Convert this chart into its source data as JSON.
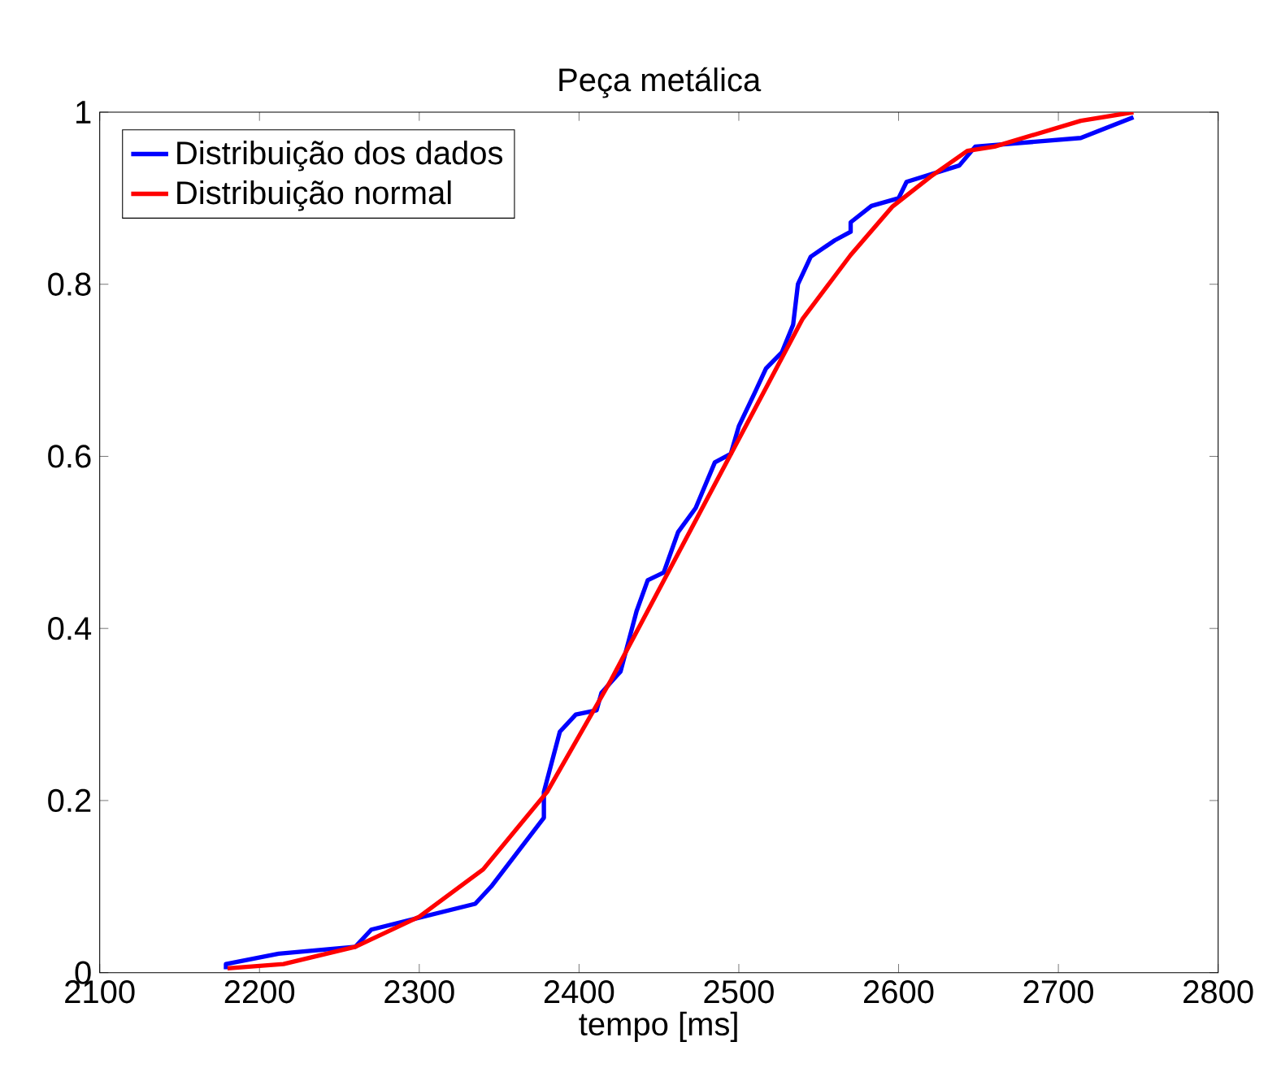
{
  "chart_data": {
    "type": "line",
    "title": "Peça metálica",
    "xlabel": "tempo [ms]",
    "xlim": [
      2100,
      2800
    ],
    "xticks": [
      2100,
      2200,
      2300,
      2400,
      2500,
      2600,
      2700,
      2800
    ],
    "ylim": [
      0,
      1
    ],
    "yticks": [
      0,
      {
        "value": 0.2,
        "label": "0.2"
      },
      {
        "value": 0.4,
        "label": "0.4"
      },
      {
        "value": 0.6,
        "label": "0.6"
      },
      {
        "value": 0.8,
        "label": "0.8"
      },
      1
    ],
    "legend": "top left",
    "grid": false,
    "marker": "none",
    "line_style": "solid",
    "series": [
      {
        "name": "Distribuição dos dados",
        "color": "#0000ff",
        "x": [
          2179,
          2179,
          2212,
          2260,
          2270,
          2335,
          2345,
          2378,
          2378,
          2388,
          2398,
          2411,
          2414,
          2426,
          2436,
          2443,
          2453,
          2462,
          2473,
          2485,
          2495,
          2500,
          2510,
          2517,
          2527,
          2534,
          2537,
          2545,
          2560,
          2570,
          2570,
          2583,
          2600,
          2605,
          2638,
          2648,
          2714,
          2747
        ],
        "values": [
          0.004,
          0.01,
          0.022,
          0.03,
          0.05,
          0.08,
          0.1,
          0.18,
          0.21,
          0.28,
          0.3,
          0.305,
          0.325,
          0.35,
          0.42,
          0.456,
          0.465,
          0.512,
          0.54,
          0.593,
          0.603,
          0.635,
          0.674,
          0.702,
          0.721,
          0.753,
          0.8,
          0.832,
          0.851,
          0.861,
          0.872,
          0.891,
          0.9,
          0.919,
          0.938,
          0.96,
          0.97,
          0.994
        ]
      },
      {
        "name": "Distribuição normal",
        "color": "#ff0000",
        "x": [
          2180,
          2215,
          2260,
          2300,
          2340,
          2380,
          2420,
          2460,
          2500,
          2522,
          2540,
          2570,
          2596,
          2620,
          2643,
          2660,
          2714,
          2747
        ],
        "values": [
          0.005,
          0.01,
          0.03,
          0.065,
          0.12,
          0.21,
          0.34,
          0.48,
          0.62,
          0.697,
          0.76,
          0.834,
          0.89,
          0.925,
          0.955,
          0.96,
          0.99,
          1.0
        ]
      }
    ]
  }
}
